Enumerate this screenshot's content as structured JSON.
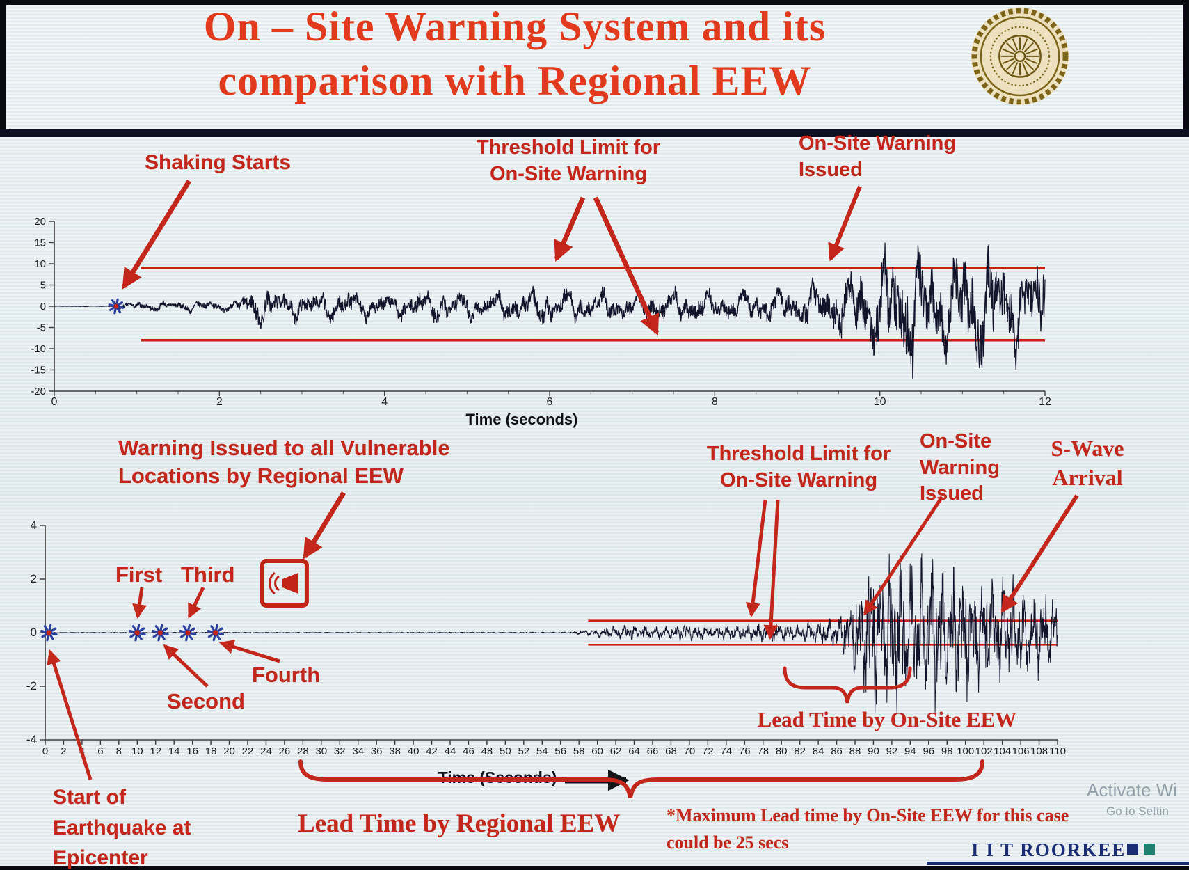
{
  "header": {
    "title_line1": "On – Site Warning System and its",
    "title_line2": "comparison with Regional EEW"
  },
  "top_annotations": {
    "shaking_starts": "Shaking Starts",
    "threshold_line1": "Threshold Limit for",
    "threshold_line2": "On-Site Warning",
    "issued_line1": "On-Site Warning",
    "issued_line2": "Issued"
  },
  "bottom_annotations": {
    "regional_line1": "Warning Issued to all Vulnerable",
    "regional_line2": "Locations by Regional EEW",
    "first": "First",
    "third": "Third",
    "second": "Second",
    "fourth": "Fourth",
    "start_line1": "Start of",
    "start_line2": "Earthquake at",
    "start_line3": "Epicenter",
    "threshold_line1": "Threshold Limit for",
    "threshold_line2": "On-Site Warning",
    "onsite_line1": "On-Site",
    "onsite_line2": "Warning",
    "onsite_line3": "Issued",
    "swave_line1": "S-Wave",
    "swave_line2": "Arrival",
    "lead_time_onsite": "Lead Time by On-Site EEW",
    "lead_time_regional": "Lead Time by Regional EEW",
    "note_line1": "*Maximum Lead time by On-Site EEW for this case",
    "note_line2": "could be 25 secs"
  },
  "footer": {
    "brand": "I I T ROORKEE",
    "watermark_line1": "Activate Wi",
    "watermark_line2": "Go to Settin"
  },
  "colors": {
    "title_red": "#e23a1c",
    "annotation_red": "#c3271b",
    "threshold_red": "#cc2015",
    "waveform_ink": "#12142c",
    "brand_navy": "#1b2d74",
    "axis_ink": "#3c3c3c",
    "star_blue": "#2a3f9e"
  },
  "chart_data": [
    {
      "id": "onsite-accelerogram-12s",
      "type": "line",
      "xlabel": "Time (seconds)",
      "xlim": [
        0,
        12
      ],
      "xticks": [
        0,
        2,
        4,
        6,
        8,
        10,
        12
      ],
      "ylim": [
        -20,
        20
      ],
      "yticks": [
        20,
        15,
        10,
        5,
        0,
        -5,
        -10,
        -15,
        -20
      ],
      "grid": false,
      "threshold_upper": 9,
      "threshold_lower": -8,
      "threshold_start_x": 1.05,
      "shaking_start_x": 0.75,
      "onsite_warning_issued_x": 9.4,
      "envelope": [
        [
          0,
          0.06
        ],
        [
          0.7,
          0.08
        ],
        [
          0.85,
          0.9
        ],
        [
          1.6,
          1.4
        ],
        [
          2.2,
          1.6
        ],
        [
          2.45,
          4.8
        ],
        [
          2.9,
          3.2
        ],
        [
          3.5,
          4.0
        ],
        [
          4.1,
          3.0
        ],
        [
          4.7,
          4.4
        ],
        [
          5.3,
          3.2
        ],
        [
          6.0,
          4.6
        ],
        [
          6.8,
          3.4
        ],
        [
          7.5,
          4.2
        ],
        [
          8.2,
          3.6
        ],
        [
          8.8,
          4.6
        ],
        [
          9.3,
          5.5
        ],
        [
          9.6,
          8.5
        ],
        [
          10.0,
          12
        ],
        [
          10.4,
          16.5
        ],
        [
          10.8,
          12
        ],
        [
          11.2,
          15.5
        ],
        [
          11.6,
          10.5
        ],
        [
          12,
          13.5
        ]
      ],
      "osc_freqs": [
        2.3,
        4.7,
        7.1,
        10.3
      ],
      "seed": 7
    },
    {
      "id": "regional-vs-onsite-accelerogram-110s",
      "type": "line",
      "xlabel": "Time (Seconds)",
      "xlim": [
        0,
        110
      ],
      "xticks_step": 2,
      "ylim": [
        -4,
        4
      ],
      "yticks": [
        4,
        2,
        0,
        -2,
        -4
      ],
      "grid": false,
      "threshold_upper": 0.45,
      "threshold_lower": -0.45,
      "threshold_start_x": 59,
      "p_detections_x": [
        0.4,
        10,
        12.5,
        15.5,
        18.5
      ],
      "regional_warning_x": 26,
      "onsite_warning_issued_x": 80,
      "s_wave_arrival_x": 93.5,
      "max_lead_time_secs": 25,
      "envelope": [
        [
          0,
          0.012
        ],
        [
          57,
          0.02
        ],
        [
          59.5,
          0.12
        ],
        [
          61,
          0.22
        ],
        [
          64,
          0.3
        ],
        [
          67,
          0.24
        ],
        [
          70,
          0.32
        ],
        [
          73,
          0.26
        ],
        [
          76,
          0.3
        ],
        [
          79,
          0.34
        ],
        [
          82,
          0.3
        ],
        [
          84,
          0.4
        ],
        [
          86,
          0.6
        ],
        [
          87.5,
          1.1
        ],
        [
          88.5,
          2.0
        ],
        [
          89.5,
          2.9
        ],
        [
          91,
          2.3
        ],
        [
          92.5,
          2.9
        ],
        [
          94,
          2.5
        ],
        [
          96,
          2.8
        ],
        [
          98,
          2.2
        ],
        [
          100,
          2.5
        ],
        [
          102,
          2.0
        ],
        [
          104,
          2.2
        ],
        [
          106,
          1.7
        ],
        [
          108,
          1.5
        ],
        [
          110,
          1.3
        ]
      ],
      "osc_freqs": [
        0.9,
        1.7,
        3.1,
        5.3
      ],
      "seed": 13
    }
  ]
}
